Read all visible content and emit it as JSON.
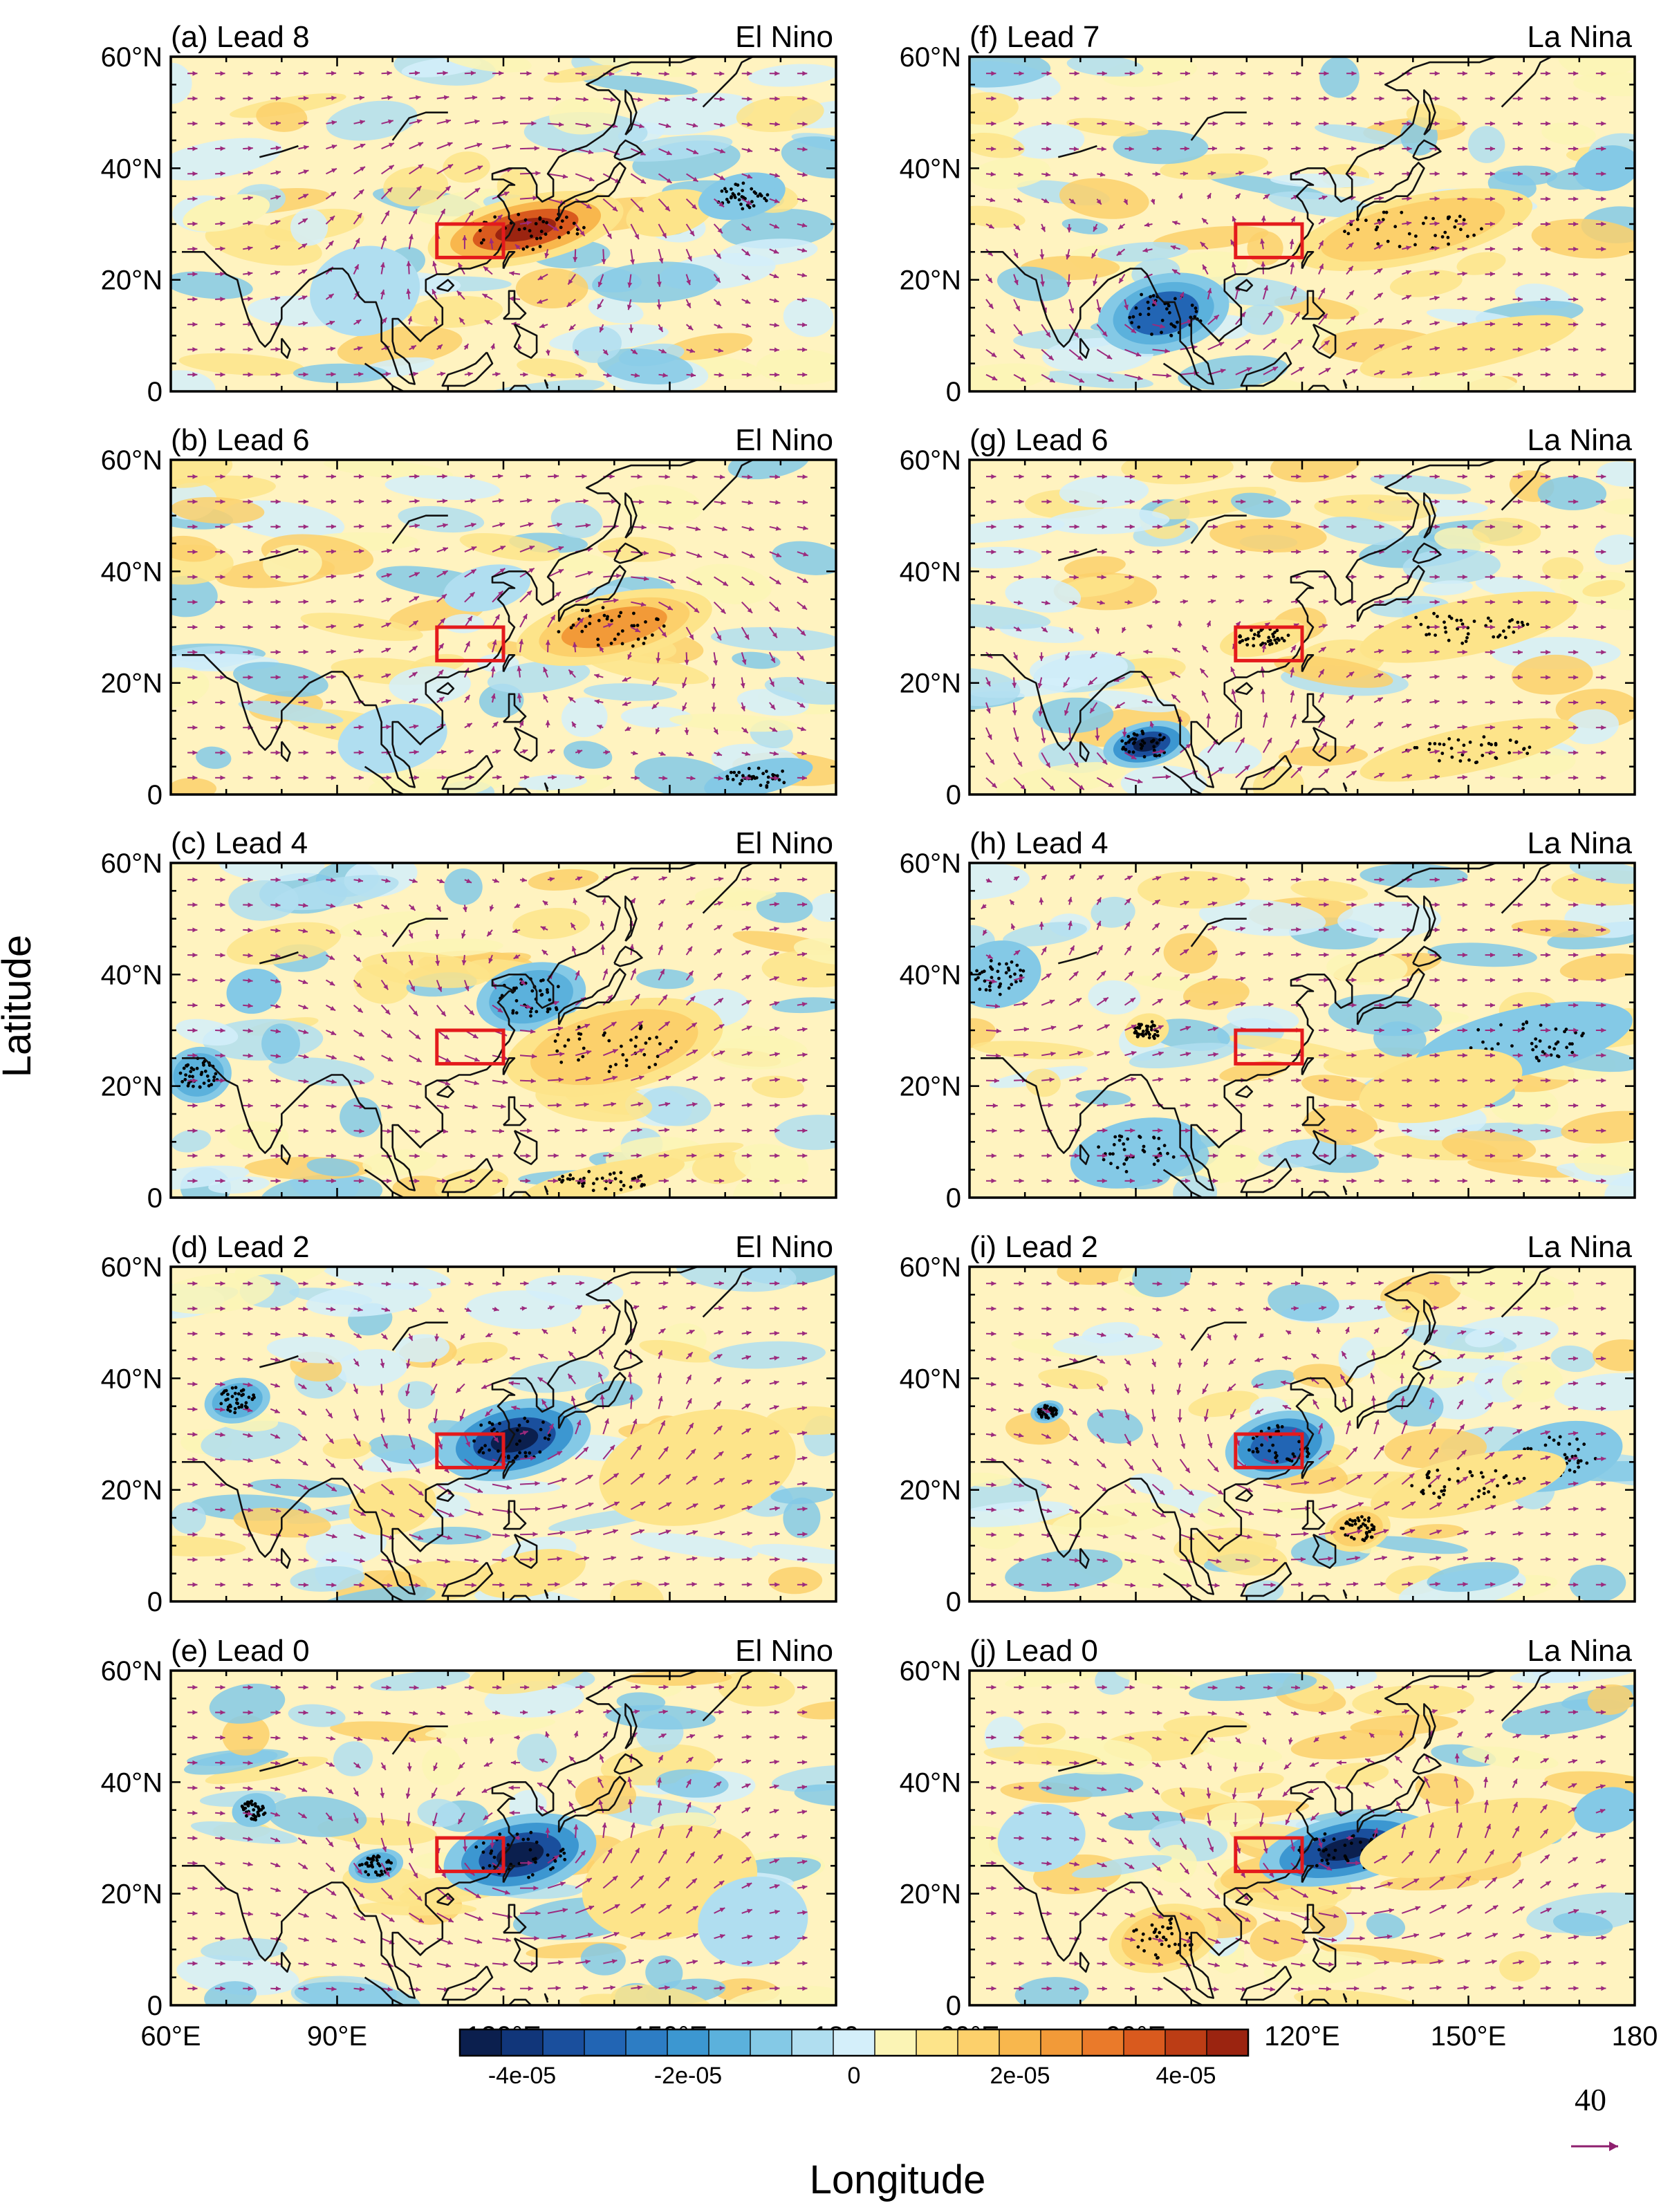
{
  "chart_data": {
    "type": "map",
    "layout": "5x2 panel grid",
    "xlabel": "Longitude",
    "ylabel": "Latitude",
    "lon_range": [
      60,
      180
    ],
    "lat_range": [
      0,
      60
    ],
    "lon_ticks": [
      "60°E",
      "90°E",
      "120°E",
      "150°E",
      "180"
    ],
    "lat_ticks": [
      "0",
      "20°N",
      "40°N",
      "60°N"
    ],
    "box_region": {
      "lon": [
        108,
        120
      ],
      "lat": [
        24,
        30
      ]
    },
    "colorbar": {
      "colors": [
        "#0b1f4e",
        "#11367a",
        "#1a4f9d",
        "#2265b4",
        "#2d7dc4",
        "#3c97d1",
        "#5bb1dc",
        "#84c9e6",
        "#b0def0",
        "#d4effa",
        "#fbf4b5",
        "#fde48a",
        "#fcd06b",
        "#f8b74d",
        "#f29a38",
        "#ea7a2a",
        "#d95a1e",
        "#bc3d15",
        "#9b2410"
      ],
      "labels": [
        {
          "text": "-4e-05",
          "value": -4e-05
        },
        {
          "text": "-2e-05",
          "value": -2e-05
        },
        {
          "text": "0",
          "value": 0
        },
        {
          "text": "2e-05",
          "value": 2e-05
        },
        {
          "text": "4e-05",
          "value": 4e-05
        }
      ]
    },
    "reference_vector": {
      "value": "40",
      "color": "#8e1f6e"
    },
    "panels": [
      {
        "id": "a",
        "title": "(a) Lead 8",
        "phase": "El Nino",
        "lead": 8,
        "pos": [
          0,
          0
        ],
        "anomalies": [
          {
            "lon": 124,
            "lat": 29,
            "rx": 18,
            "ry": 6,
            "sign": 1,
            "strength": 1.0
          },
          {
            "lon": 150,
            "lat": 32,
            "rx": 8,
            "ry": 4,
            "sign": 1,
            "strength": 0.4
          },
          {
            "lon": 163,
            "lat": 35,
            "rx": 8,
            "ry": 4,
            "sign": -1,
            "strength": 0.5
          },
          {
            "lon": 95,
            "lat": 18,
            "rx": 10,
            "ry": 8,
            "sign": -1,
            "strength": 0.35
          },
          {
            "lon": 70,
            "lat": 32,
            "rx": 8,
            "ry": 3,
            "sign": 1,
            "strength": 0.35
          }
        ]
      },
      {
        "id": "f",
        "title": "(f) Lead 7",
        "phase": "La Nina",
        "lead": 7,
        "pos": [
          1,
          0
        ],
        "anomalies": [
          {
            "lon": 95,
            "lat": 14,
            "rx": 12,
            "ry": 7,
            "sign": -1,
            "strength": 0.85
          },
          {
            "lon": 140,
            "lat": 29,
            "rx": 22,
            "ry": 6,
            "sign": 1,
            "strength": 0.55
          },
          {
            "lon": 150,
            "lat": 8,
            "rx": 20,
            "ry": 4,
            "sign": 1,
            "strength": 0.4
          },
          {
            "lon": 175,
            "lat": 40,
            "rx": 6,
            "ry": 4,
            "sign": -1,
            "strength": 0.4
          }
        ]
      },
      {
        "id": "b",
        "title": "(b) Lead 6",
        "phase": "El Nino",
        "lead": 6,
        "pos": [
          0,
          1
        ],
        "anomalies": [
          {
            "lon": 140,
            "lat": 30,
            "rx": 18,
            "ry": 6,
            "sign": 1,
            "strength": 0.8
          },
          {
            "lon": 117,
            "lat": 37,
            "rx": 8,
            "ry": 4,
            "sign": -1,
            "strength": 0.35
          },
          {
            "lon": 166,
            "lat": 3,
            "rx": 10,
            "ry": 3,
            "sign": -1,
            "strength": 0.5
          },
          {
            "lon": 100,
            "lat": 10,
            "rx": 10,
            "ry": 6,
            "sign": -1,
            "strength": 0.3
          }
        ]
      },
      {
        "id": "g",
        "title": "(g) Lead 6",
        "phase": "La Nina",
        "lead": 6,
        "pos": [
          1,
          1
        ],
        "anomalies": [
          {
            "lon": 92,
            "lat": 9,
            "rx": 8,
            "ry": 4,
            "sign": -1,
            "strength": 1.0
          },
          {
            "lon": 150,
            "lat": 30,
            "rx": 20,
            "ry": 5,
            "sign": 1,
            "strength": 0.5
          },
          {
            "lon": 150,
            "lat": 8,
            "rx": 20,
            "ry": 4,
            "sign": 1,
            "strength": 0.45
          },
          {
            "lon": 113,
            "lat": 28,
            "rx": 8,
            "ry": 3,
            "sign": 1,
            "strength": 0.45
          }
        ]
      },
      {
        "id": "c",
        "title": "(c) Lead 4",
        "phase": "El Nino",
        "lead": 4,
        "pos": [
          0,
          2
        ],
        "anomalies": [
          {
            "lon": 125,
            "lat": 36,
            "rx": 10,
            "ry": 6,
            "sign": -1,
            "strength": 0.65
          },
          {
            "lon": 140,
            "lat": 27,
            "rx": 20,
            "ry": 8,
            "sign": 1,
            "strength": 0.55
          },
          {
            "lon": 65,
            "lat": 22,
            "rx": 6,
            "ry": 5,
            "sign": -1,
            "strength": 0.55
          },
          {
            "lon": 75,
            "lat": 37,
            "rx": 5,
            "ry": 4,
            "sign": -1,
            "strength": 0.4
          },
          {
            "lon": 138,
            "lat": 3,
            "rx": 15,
            "ry": 3,
            "sign": 1,
            "strength": 0.45
          }
        ]
      },
      {
        "id": "h",
        "title": "(h) Lead 4",
        "phase": "La Nina",
        "lead": 4,
        "pos": [
          1,
          2
        ],
        "anomalies": [
          {
            "lon": 65,
            "lat": 40,
            "rx": 8,
            "ry": 6,
            "sign": -1,
            "strength": 0.5
          },
          {
            "lon": 90,
            "lat": 8,
            "rx": 12,
            "ry": 6,
            "sign": -1,
            "strength": 0.45
          },
          {
            "lon": 160,
            "lat": 28,
            "rx": 20,
            "ry": 6,
            "sign": -1,
            "strength": 0.45
          },
          {
            "lon": 145,
            "lat": 20,
            "rx": 15,
            "ry": 6,
            "sign": 1,
            "strength": 0.4
          },
          {
            "lon": 92,
            "lat": 30,
            "rx": 4,
            "ry": 3,
            "sign": 1,
            "strength": 0.5
          }
        ]
      },
      {
        "id": "d",
        "title": "(d) Lead 2",
        "phase": "El Nino",
        "lead": 2,
        "pos": [
          0,
          3
        ],
        "anomalies": [
          {
            "lon": 122,
            "lat": 29,
            "rx": 14,
            "ry": 7,
            "sign": -1,
            "strength": 1.0
          },
          {
            "lon": 155,
            "lat": 24,
            "rx": 18,
            "ry": 10,
            "sign": 1,
            "strength": 0.4
          },
          {
            "lon": 72,
            "lat": 36,
            "rx": 6,
            "ry": 4,
            "sign": -1,
            "strength": 0.55
          },
          {
            "lon": 100,
            "lat": 17,
            "rx": 8,
            "ry": 5,
            "sign": 1,
            "strength": 0.4
          },
          {
            "lon": 125,
            "lat": 5,
            "rx": 10,
            "ry": 4,
            "sign": 1,
            "strength": 0.4
          }
        ]
      },
      {
        "id": "i",
        "title": "(i) Lead 2",
        "phase": "La Nina",
        "lead": 2,
        "pos": [
          1,
          3
        ],
        "anomalies": [
          {
            "lon": 116,
            "lat": 28,
            "rx": 10,
            "ry": 6,
            "sign": -1,
            "strength": 0.9
          },
          {
            "lon": 166,
            "lat": 26,
            "rx": 12,
            "ry": 6,
            "sign": -1,
            "strength": 0.5
          },
          {
            "lon": 150,
            "lat": 21,
            "rx": 18,
            "ry": 5,
            "sign": 1,
            "strength": 0.45
          },
          {
            "lon": 130,
            "lat": 13,
            "rx": 6,
            "ry": 4,
            "sign": 1,
            "strength": 0.6
          },
          {
            "lon": 74,
            "lat": 34,
            "rx": 3,
            "ry": 2,
            "sign": -1,
            "strength": 0.6
          }
        ]
      },
      {
        "id": "e",
        "title": "(e) Lead 0",
        "phase": "El Nino",
        "lead": 0,
        "pos": [
          0,
          4
        ],
        "anomalies": [
          {
            "lon": 123,
            "lat": 27,
            "rx": 14,
            "ry": 7,
            "sign": -1,
            "strength": 1.0
          },
          {
            "lon": 150,
            "lat": 22,
            "rx": 16,
            "ry": 10,
            "sign": 1,
            "strength": 0.4
          },
          {
            "lon": 75,
            "lat": 35,
            "rx": 4,
            "ry": 3,
            "sign": -1,
            "strength": 0.5
          },
          {
            "lon": 97,
            "lat": 25,
            "rx": 5,
            "ry": 3,
            "sign": -1,
            "strength": 0.55
          },
          {
            "lon": 165,
            "lat": 15,
            "rx": 10,
            "ry": 8,
            "sign": -1,
            "strength": 0.3
          }
        ]
      },
      {
        "id": "j",
        "title": "(j) Lead 0",
        "phase": "La Nina",
        "lead": 0,
        "pos": [
          1,
          4
        ],
        "anomalies": [
          {
            "lon": 128,
            "lat": 28,
            "rx": 16,
            "ry": 6,
            "sign": -1,
            "strength": 1.0
          },
          {
            "lon": 95,
            "lat": 12,
            "rx": 10,
            "ry": 6,
            "sign": 1,
            "strength": 0.7
          },
          {
            "lon": 150,
            "lat": 30,
            "rx": 20,
            "ry": 6,
            "sign": 1,
            "strength": 0.4
          },
          {
            "lon": 175,
            "lat": 35,
            "rx": 6,
            "ry": 4,
            "sign": -1,
            "strength": 0.4
          },
          {
            "lon": 73,
            "lat": 30,
            "rx": 8,
            "ry": 6,
            "sign": -1,
            "strength": 0.3
          }
        ]
      }
    ]
  }
}
